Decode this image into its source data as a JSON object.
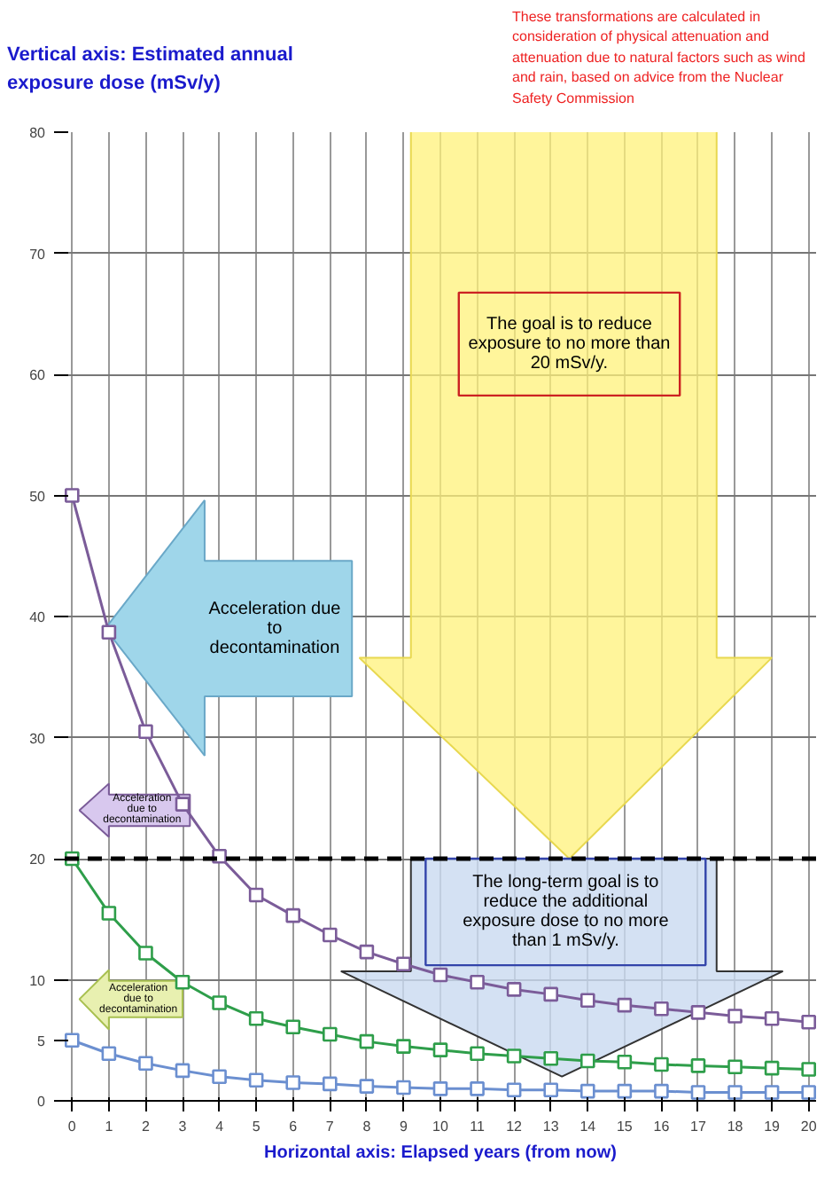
{
  "chart_data": {
    "type": "line",
    "ylabel": "Vertical axis: Estimated annual exposure dose (mSv/y)",
    "xlabel": "Horizontal axis: Elapsed years (from now)",
    "x": [
      0,
      1,
      2,
      3,
      4,
      5,
      6,
      7,
      8,
      9,
      10,
      11,
      12,
      13,
      14,
      15,
      16,
      17,
      18,
      19,
      20
    ],
    "series": [
      {
        "color": "#7b5c99",
        "values": [
          50,
          38.7,
          30.5,
          24.5,
          20.2,
          17.0,
          15.3,
          13.7,
          12.3,
          11.3,
          10.4,
          9.8,
          9.2,
          8.8,
          8.3,
          7.9,
          7.6,
          7.3,
          7.0,
          6.8,
          6.5
        ]
      },
      {
        "color": "#2e9e4a",
        "values": [
          20,
          15.5,
          12.2,
          9.8,
          8.1,
          6.8,
          6.1,
          5.5,
          4.9,
          4.5,
          4.2,
          3.9,
          3.7,
          3.5,
          3.3,
          3.2,
          3.0,
          2.9,
          2.8,
          2.7,
          2.6
        ]
      },
      {
        "color": "#6b8fd0",
        "values": [
          5,
          3.9,
          3.1,
          2.5,
          2.0,
          1.7,
          1.5,
          1.4,
          1.2,
          1.1,
          1.0,
          1.0,
          0.9,
          0.9,
          0.8,
          0.8,
          0.8,
          0.7,
          0.7,
          0.7,
          0.7
        ]
      }
    ],
    "xlim": [
      -0.2,
      20.2
    ],
    "ylim": [
      0,
      80
    ],
    "xticks": [
      0,
      1,
      2,
      3,
      4,
      5,
      6,
      7,
      8,
      9,
      10,
      11,
      12,
      13,
      14,
      15,
      16,
      17,
      18,
      19,
      20
    ],
    "yticks": [
      0,
      5,
      10,
      20,
      30,
      40,
      50,
      60,
      70,
      80
    ],
    "ref_lines": [
      {
        "axis": "y",
        "value": 20,
        "color": "#000000",
        "line_style": "dashed"
      }
    ],
    "annotations": [
      "These transformations are calculated in consideration of physical attenuation and attenuation due to natural factors such as wind and rain, based on advice from the Nuclear Safety Commission",
      "The goal is to reduce exposure to no more than 20 mSv/y.",
      "Acceleration due to decontamination",
      "The long-term goal is to reduce the additional exposure dose to no more than 1 mSv/y.",
      "Acceleration due to decontamination",
      "Acceleration due to decontamination"
    ],
    "grid": true,
    "marker": "square",
    "line_style": "solid"
  }
}
